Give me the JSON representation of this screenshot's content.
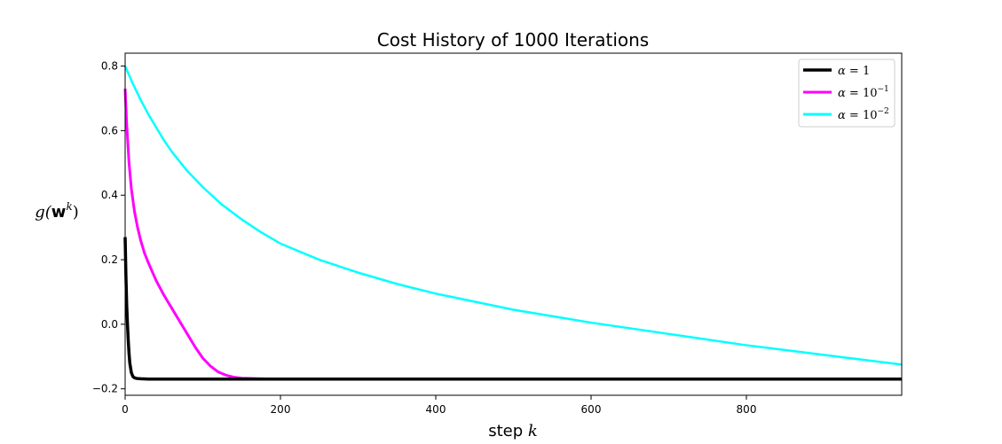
{
  "chart_data": {
    "type": "line",
    "title": "Cost History of 1000 Iterations",
    "xlabel": "step k",
    "ylabel": "g(w^k)",
    "xlim": [
      0,
      1000
    ],
    "ylim": [
      -0.22,
      0.84
    ],
    "xticks": [
      0,
      200,
      400,
      600,
      800
    ],
    "yticks": [
      -0.2,
      0.0,
      0.2,
      0.4,
      0.6,
      0.8
    ],
    "ytick_labels": [
      "−0.2",
      "0.0",
      "0.2",
      "0.4",
      "0.6",
      "0.8"
    ],
    "legend_placement": "top-right",
    "grid": false,
    "series": [
      {
        "name": "α = 1",
        "color": "#000000",
        "x": [
          0,
          1,
          2,
          3,
          4,
          5,
          6,
          8,
          10,
          12,
          15,
          20,
          30,
          100,
          500,
          1000
        ],
        "y": [
          0.27,
          0.15,
          0.06,
          0.0,
          -0.05,
          -0.09,
          -0.12,
          -0.15,
          -0.162,
          -0.166,
          -0.168,
          -0.169,
          -0.17,
          -0.17,
          -0.17,
          -0.17
        ]
      },
      {
        "name": "α = 10^-1",
        "color": "#ff00ff",
        "x": [
          0,
          2,
          5,
          8,
          12,
          16,
          20,
          25,
          30,
          40,
          50,
          60,
          70,
          80,
          90,
          100,
          110,
          120,
          130,
          140,
          150,
          160,
          175,
          200,
          300,
          500,
          1000
        ],
        "y": [
          0.73,
          0.62,
          0.5,
          0.42,
          0.35,
          0.3,
          0.26,
          0.22,
          0.19,
          0.135,
          0.09,
          0.05,
          0.01,
          -0.03,
          -0.07,
          -0.105,
          -0.13,
          -0.148,
          -0.158,
          -0.164,
          -0.167,
          -0.168,
          -0.169,
          -0.17,
          -0.17,
          -0.17,
          -0.17
        ]
      },
      {
        "name": "α = 10^-2",
        "color": "#00ffff",
        "x": [
          0,
          10,
          20,
          30,
          40,
          50,
          60,
          80,
          100,
          125,
          150,
          175,
          200,
          250,
          300,
          350,
          400,
          450,
          500,
          600,
          700,
          800,
          900,
          1000
        ],
        "y": [
          0.8,
          0.745,
          0.695,
          0.65,
          0.61,
          0.57,
          0.535,
          0.475,
          0.425,
          0.37,
          0.325,
          0.285,
          0.25,
          0.2,
          0.16,
          0.125,
          0.095,
          0.07,
          0.045,
          0.005,
          -0.03,
          -0.065,
          -0.095,
          -0.125
        ]
      }
    ]
  },
  "legend": {
    "entries": [
      {
        "alpha": "α",
        "eq": " = ",
        "base": "1",
        "exp": ""
      },
      {
        "alpha": "α",
        "eq": " = ",
        "base": "10",
        "exp": "−1"
      },
      {
        "alpha": "α",
        "eq": " = ",
        "base": "10",
        "exp": "−2"
      }
    ]
  },
  "labels": {
    "x_word": "step",
    "x_var": "k",
    "y_func": "g(",
    "y_w": "w",
    "y_sup": "k",
    "y_close": ")"
  }
}
